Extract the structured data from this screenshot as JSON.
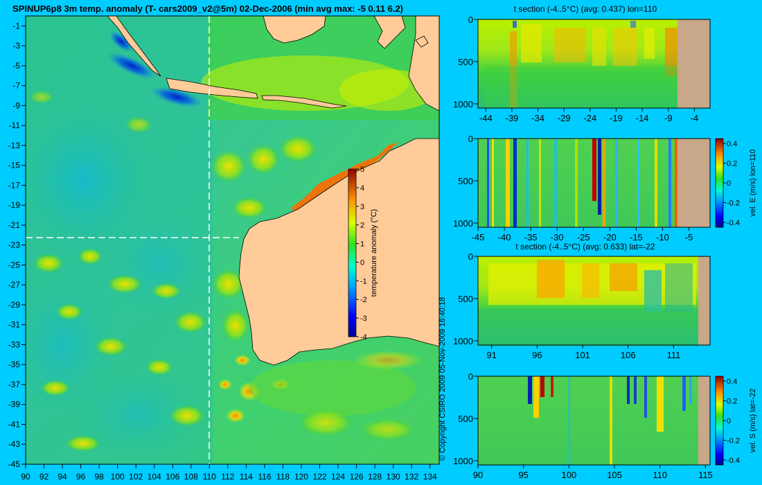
{
  "main_map": {
    "title": "SPINUP6p8 3m temp. anomaly (T- cars2009_v2@5m) 02-Dec-2006 (min avg max: -5 0.11 6.2)",
    "x_ticks": [
      "90",
      "92",
      "94",
      "96",
      "98",
      "100",
      "102",
      "104",
      "106",
      "108",
      "110",
      "112",
      "114",
      "116",
      "118",
      "120",
      "122",
      "124",
      "126",
      "128",
      "130",
      "132",
      "134"
    ],
    "y_ticks": [
      "-1",
      "-3",
      "-5",
      "-7",
      "-9",
      "-11",
      "-13",
      "-15",
      "-17",
      "-19",
      "-21",
      "-23",
      "-25",
      "-27",
      "-29",
      "-31",
      "-33",
      "-35",
      "-37",
      "-39",
      "-41",
      "-43",
      "-45"
    ],
    "section_lon": "110",
    "section_lat": "-22",
    "colorbar": {
      "label": "temperature anomaly (°C)",
      "ticks": [
        "5",
        "4",
        "3",
        "2",
        "1",
        "0",
        "-1",
        "-2",
        "-3",
        "-4"
      ]
    },
    "copyright": "© Copyright CSIRO 2009   05-Nov-2009 16:40:18"
  },
  "panels": [
    {
      "id": "t-lon110",
      "title": "t section (-4..5°C) (avg: 0.437) lon=110",
      "y_ticks": [
        "0",
        "500",
        "1000"
      ],
      "x_ticks": [
        "-44",
        "-39",
        "-34",
        "-29",
        "-24",
        "-19",
        "-14",
        "-9",
        "-4"
      ],
      "colorbar": null
    },
    {
      "id": "vel-e-lon110",
      "title": "",
      "y_ticks": [
        "0",
        "500",
        "1000"
      ],
      "x_ticks": [
        "-45",
        "-40",
        "-35",
        "-30",
        "-25",
        "-20",
        "-15",
        "-10",
        "-5"
      ],
      "colorbar": {
        "label": "vel. E (m/s) lon=110",
        "ticks": [
          "0.4",
          "0.2",
          "0",
          "-0.2",
          "-0.4"
        ]
      }
    },
    {
      "id": "t-lat22",
      "title": "t section (-4..5°C) (avg: 0.633) lat=-22",
      "y_ticks": [
        "0",
        "500",
        "1000"
      ],
      "x_ticks": [
        "91",
        "96",
        "101",
        "106",
        "111"
      ],
      "colorbar": null
    },
    {
      "id": "vel-s-lat22",
      "title": "",
      "y_ticks": [
        "0",
        "500",
        "1000"
      ],
      "x_ticks": [
        "90",
        "95",
        "100",
        "105",
        "110",
        "115"
      ],
      "colorbar": {
        "label": "vel. S (m/s) lat=-22",
        "ticks": [
          "0.4",
          "0.2",
          "0",
          "-0.2",
          "-0.4"
        ]
      }
    }
  ],
  "chart_data": [
    {
      "type": "heatmap",
      "title": "SPINUP6p8 3m temp. anomaly (T- cars2009_v2@5m) 02-Dec-2006 (min avg max: -5 0.11 6.2)",
      "xlim": [
        90,
        135
      ],
      "ylim": [
        -45,
        0
      ],
      "stats": {
        "min": -5,
        "avg": 0.11,
        "max": 6.2
      },
      "colorbar_range": [
        -4,
        5
      ],
      "section_lines": {
        "lon": 110,
        "lat": -22
      }
    },
    {
      "type": "heatmap",
      "title": "t section (-4..5°C) (avg: 0.437) lon=110",
      "avg": 0.437,
      "x_ticks": [
        -44,
        -39,
        -34,
        -29,
        -24,
        -19,
        -14,
        -9,
        -4
      ],
      "depth_ticks": [
        0,
        500,
        1000
      ]
    },
    {
      "type": "heatmap",
      "colorbar_label": "vel. E (m/s) lon=110",
      "colorbar_range": [
        -0.4,
        0.4
      ],
      "x_ticks": [
        -45,
        -40,
        -35,
        -30,
        -25,
        -20,
        -15,
        -10,
        -5
      ],
      "depth_ticks": [
        0,
        500,
        1000
      ]
    },
    {
      "type": "heatmap",
      "title": "t section (-4..5°C) (avg: 0.633) lat=-22",
      "avg": 0.633,
      "x_ticks": [
        91,
        96,
        101,
        106,
        111
      ],
      "depth_ticks": [
        0,
        500,
        1000
      ]
    },
    {
      "type": "heatmap",
      "colorbar_label": "vel. S (m/s) lat=-22",
      "colorbar_range": [
        -0.4,
        0.4
      ],
      "x_ticks": [
        90,
        95,
        100,
        105,
        110,
        115
      ],
      "depth_ticks": [
        0,
        500,
        1000
      ]
    }
  ]
}
